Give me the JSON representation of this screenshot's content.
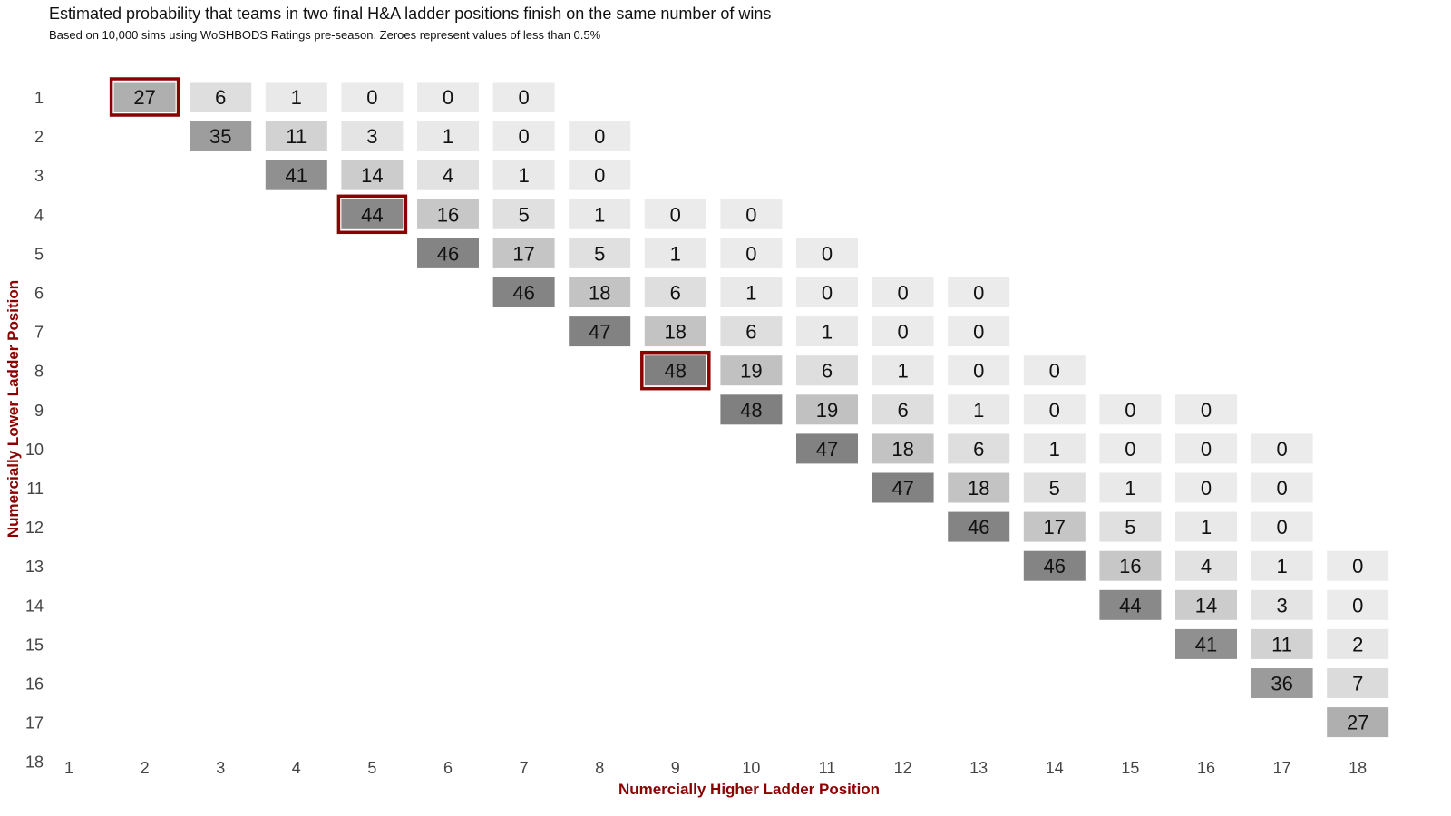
{
  "chart_data": {
    "type": "heatmap",
    "title": "Estimated probability that teams in two final H&A ladder positions finish on the same number of wins",
    "subtitle": "Based on 10,000 sims using WoSHBODS Ratings pre-season. Zeroes represent values of less than 0.5%",
    "xlabel": "Numercially Higher Ladder Position",
    "ylabel": "Numercially Lower Ladder Position",
    "x_ticks": [
      "1",
      "2",
      "3",
      "4",
      "5",
      "6",
      "7",
      "8",
      "9",
      "10",
      "11",
      "12",
      "13",
      "14",
      "15",
      "16",
      "17",
      "18"
    ],
    "y_ticks": [
      "1",
      "2",
      "3",
      "4",
      "5",
      "6",
      "7",
      "8",
      "9",
      "10",
      "11",
      "12",
      "13",
      "14",
      "15",
      "16",
      "17",
      "18"
    ],
    "label_color": "#8b0000",
    "highlight_color": "#8b0000",
    "cells": [
      {
        "row": 1,
        "col": 2,
        "value": 27,
        "highlight": true
      },
      {
        "row": 1,
        "col": 3,
        "value": 6
      },
      {
        "row": 1,
        "col": 4,
        "value": 1
      },
      {
        "row": 1,
        "col": 5,
        "value": 0
      },
      {
        "row": 1,
        "col": 6,
        "value": 0
      },
      {
        "row": 1,
        "col": 7,
        "value": 0
      },
      {
        "row": 2,
        "col": 3,
        "value": 35
      },
      {
        "row": 2,
        "col": 4,
        "value": 11
      },
      {
        "row": 2,
        "col": 5,
        "value": 3
      },
      {
        "row": 2,
        "col": 6,
        "value": 1
      },
      {
        "row": 2,
        "col": 7,
        "value": 0
      },
      {
        "row": 2,
        "col": 8,
        "value": 0
      },
      {
        "row": 3,
        "col": 4,
        "value": 41
      },
      {
        "row": 3,
        "col": 5,
        "value": 14
      },
      {
        "row": 3,
        "col": 6,
        "value": 4
      },
      {
        "row": 3,
        "col": 7,
        "value": 1
      },
      {
        "row": 3,
        "col": 8,
        "value": 0
      },
      {
        "row": 4,
        "col": 5,
        "value": 44,
        "highlight": true
      },
      {
        "row": 4,
        "col": 6,
        "value": 16
      },
      {
        "row": 4,
        "col": 7,
        "value": 5
      },
      {
        "row": 4,
        "col": 8,
        "value": 1
      },
      {
        "row": 4,
        "col": 9,
        "value": 0
      },
      {
        "row": 4,
        "col": 10,
        "value": 0
      },
      {
        "row": 5,
        "col": 6,
        "value": 46
      },
      {
        "row": 5,
        "col": 7,
        "value": 17
      },
      {
        "row": 5,
        "col": 8,
        "value": 5
      },
      {
        "row": 5,
        "col": 9,
        "value": 1
      },
      {
        "row": 5,
        "col": 10,
        "value": 0
      },
      {
        "row": 5,
        "col": 11,
        "value": 0
      },
      {
        "row": 6,
        "col": 7,
        "value": 46
      },
      {
        "row": 6,
        "col": 8,
        "value": 18
      },
      {
        "row": 6,
        "col": 9,
        "value": 6
      },
      {
        "row": 6,
        "col": 10,
        "value": 1
      },
      {
        "row": 6,
        "col": 11,
        "value": 0
      },
      {
        "row": 6,
        "col": 12,
        "value": 0
      },
      {
        "row": 6,
        "col": 13,
        "value": 0
      },
      {
        "row": 7,
        "col": 8,
        "value": 47
      },
      {
        "row": 7,
        "col": 9,
        "value": 18
      },
      {
        "row": 7,
        "col": 10,
        "value": 6
      },
      {
        "row": 7,
        "col": 11,
        "value": 1
      },
      {
        "row": 7,
        "col": 12,
        "value": 0
      },
      {
        "row": 7,
        "col": 13,
        "value": 0
      },
      {
        "row": 8,
        "col": 9,
        "value": 48,
        "highlight": true
      },
      {
        "row": 8,
        "col": 10,
        "value": 19
      },
      {
        "row": 8,
        "col": 11,
        "value": 6
      },
      {
        "row": 8,
        "col": 12,
        "value": 1
      },
      {
        "row": 8,
        "col": 13,
        "value": 0
      },
      {
        "row": 8,
        "col": 14,
        "value": 0
      },
      {
        "row": 9,
        "col": 10,
        "value": 48
      },
      {
        "row": 9,
        "col": 11,
        "value": 19
      },
      {
        "row": 9,
        "col": 12,
        "value": 6
      },
      {
        "row": 9,
        "col": 13,
        "value": 1
      },
      {
        "row": 9,
        "col": 14,
        "value": 0
      },
      {
        "row": 9,
        "col": 15,
        "value": 0
      },
      {
        "row": 9,
        "col": 16,
        "value": 0
      },
      {
        "row": 10,
        "col": 11,
        "value": 47
      },
      {
        "row": 10,
        "col": 12,
        "value": 18
      },
      {
        "row": 10,
        "col": 13,
        "value": 6
      },
      {
        "row": 10,
        "col": 14,
        "value": 1
      },
      {
        "row": 10,
        "col": 15,
        "value": 0
      },
      {
        "row": 10,
        "col": 16,
        "value": 0
      },
      {
        "row": 10,
        "col": 17,
        "value": 0
      },
      {
        "row": 11,
        "col": 12,
        "value": 47
      },
      {
        "row": 11,
        "col": 13,
        "value": 18
      },
      {
        "row": 11,
        "col": 14,
        "value": 5
      },
      {
        "row": 11,
        "col": 15,
        "value": 1
      },
      {
        "row": 11,
        "col": 16,
        "value": 0
      },
      {
        "row": 11,
        "col": 17,
        "value": 0
      },
      {
        "row": 12,
        "col": 13,
        "value": 46
      },
      {
        "row": 12,
        "col": 14,
        "value": 17
      },
      {
        "row": 12,
        "col": 15,
        "value": 5
      },
      {
        "row": 12,
        "col": 16,
        "value": 1
      },
      {
        "row": 12,
        "col": 17,
        "value": 0
      },
      {
        "row": 13,
        "col": 14,
        "value": 46
      },
      {
        "row": 13,
        "col": 15,
        "value": 16
      },
      {
        "row": 13,
        "col": 16,
        "value": 4
      },
      {
        "row": 13,
        "col": 17,
        "value": 1
      },
      {
        "row": 13,
        "col": 18,
        "value": 0
      },
      {
        "row": 14,
        "col": 15,
        "value": 44
      },
      {
        "row": 14,
        "col": 16,
        "value": 14
      },
      {
        "row": 14,
        "col": 17,
        "value": 3
      },
      {
        "row": 14,
        "col": 18,
        "value": 0
      },
      {
        "row": 15,
        "col": 16,
        "value": 41
      },
      {
        "row": 15,
        "col": 17,
        "value": 11
      },
      {
        "row": 15,
        "col": 18,
        "value": 2
      },
      {
        "row": 16,
        "col": 17,
        "value": 36
      },
      {
        "row": 16,
        "col": 18,
        "value": 7
      },
      {
        "row": 17,
        "col": 18,
        "value": 27
      }
    ]
  }
}
